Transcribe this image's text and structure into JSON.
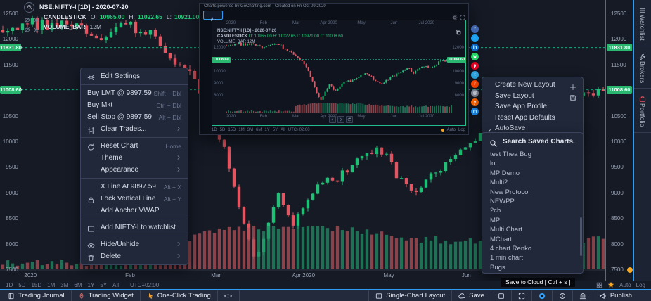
{
  "legend": {
    "symbol": "NSE:NIFTY-I [1D] - 2020-07-20",
    "study1": {
      "name": "CANDLESTICK",
      "o_label": "O:",
      "o": "10965.00",
      "h_label": "H:",
      "h": "11022.65",
      "l_label": "L:",
      "l": "10921.00",
      "c_label": "C:",
      "c": "11008.60"
    },
    "study2": {
      "name": "VOLUME_BAR",
      "value": "12M"
    }
  },
  "price_axis": {
    "tags": [
      {
        "label": "11831.80",
        "price": 11831.8
      },
      {
        "label": "11008.60",
        "price": 11008.6
      }
    ]
  },
  "chart_data": {
    "type": "candlestick",
    "symbol": "NSE:NIFTY-I",
    "interval": "1D",
    "last_date": "2020-07-20",
    "ohlc": {
      "open": 10965.0,
      "high": 11022.65,
      "low": 10921.0,
      "close": 11008.6
    },
    "volume": "12M",
    "y_range": [
      7500,
      12500
    ],
    "y_ticks": [
      12500,
      12000,
      11500,
      10500,
      10000,
      9500,
      9000,
      8500,
      8000,
      7500
    ],
    "x_ticks": [
      {
        "label": "2020",
        "f": 0.046
      },
      {
        "label": "Feb",
        "f": 0.212
      },
      {
        "label": "Mar",
        "f": 0.355
      },
      {
        "label": "Apr 2020",
        "f": 0.501
      },
      {
        "label": "May",
        "f": 0.643
      },
      {
        "label": "Jun",
        "f": 0.772
      }
    ],
    "levels": [
      11831.8,
      11008.6
    ],
    "anchors": [
      [
        0,
        12150
      ],
      [
        0.05,
        12300
      ],
      [
        0.12,
        12250
      ],
      [
        0.16,
        11950
      ],
      [
        0.2,
        12250
      ],
      [
        0.24,
        12150
      ],
      [
        0.28,
        11650
      ],
      [
        0.31,
        11300
      ],
      [
        0.34,
        10800
      ],
      [
        0.37,
        9800
      ],
      [
        0.4,
        8400
      ],
      [
        0.42,
        7620
      ],
      [
        0.44,
        8350
      ],
      [
        0.46,
        8950
      ],
      [
        0.48,
        8350
      ],
      [
        0.52,
        9100
      ],
      [
        0.56,
        9300
      ],
      [
        0.6,
        9700
      ],
      [
        0.63,
        9850
      ],
      [
        0.66,
        9250
      ],
      [
        0.69,
        8950
      ],
      [
        0.72,
        9400
      ],
      [
        0.75,
        9700
      ],
      [
        0.78,
        10000
      ],
      [
        0.81,
        10250
      ],
      [
        0.83,
        9900
      ],
      [
        0.86,
        10350
      ],
      [
        0.89,
        10500
      ],
      [
        0.91,
        10250
      ],
      [
        0.94,
        10750
      ],
      [
        0.97,
        10900
      ],
      [
        1,
        11010
      ]
    ]
  },
  "context_menu": {
    "items": [
      {
        "icon": "gear",
        "label": "Edit Settings"
      },
      {
        "divider": true
      },
      {
        "label": "Buy LMT @ 9897.59",
        "shortcut": "Shift + Dbl",
        "flush": true
      },
      {
        "label": "Buy Mkt",
        "shortcut": "Ctrl + Dbl",
        "flush": true
      },
      {
        "label": "Sell Stop @ 9897.59",
        "shortcut": "Alt + Dbl",
        "flush": true
      },
      {
        "icon": "sliders",
        "label": "Clear Trades...",
        "submenu": true
      },
      {
        "divider": true
      },
      {
        "icon": "reset",
        "label": "Reset Chart",
        "shortcut": "Home"
      },
      {
        "label": "Theme",
        "submenu": true
      },
      {
        "label": "Appearance",
        "submenu": true
      },
      {
        "divider": true
      },
      {
        "label": "X Line At 9897.59",
        "shortcut": "Alt + X"
      },
      {
        "icon": "lock",
        "label": "Lock Vertical Line",
        "shortcut": "Alt + Y"
      },
      {
        "label": "Add Anchor VWAP"
      },
      {
        "divider": true
      },
      {
        "icon": "wadd",
        "label": "Add NIFTY-I to watchlist"
      },
      {
        "divider": true
      },
      {
        "icon": "eye",
        "label": "Hide/Unhide",
        "submenu": true
      },
      {
        "icon": "trash",
        "label": "Delete",
        "submenu": true
      }
    ]
  },
  "layout_menu": {
    "items": [
      {
        "label": "Create New Layout",
        "right_icon": "plus"
      },
      {
        "label": "Save Layout",
        "right_icon": "save"
      },
      {
        "label": "Save App Profile"
      },
      {
        "label": "Reset App Defaults"
      },
      {
        "label": "AutoSave",
        "checked": true
      }
    ]
  },
  "saved_charts": {
    "search_placeholder": "Search Saved Charts.",
    "items": [
      "test Thea Bug",
      "lol",
      "MP Demo",
      "Multi2",
      "New Protocol",
      "NEWPP",
      "2ch",
      "MP",
      "Multi Chart",
      "MChart",
      "4 chart Renko",
      "1 min chart",
      "Bugs"
    ]
  },
  "popup": {
    "header": "Charts powered by GoCharting.com - Created on Fri Oct 09 2020",
    "legend_symbol": "NSE:NIFTY-I [1D] - 2020-07-20",
    "legend_candle_name": "CANDLESTICK",
    "legend_candle_values": "O: 10965.00 H: 11022.65 L: 10921.00 C: 11008.60",
    "legend_volume": "VOLUME_BAR 12M",
    "x_ticks": [
      "2020",
      "Feb",
      "Mar",
      "Apr 2020",
      "May",
      "Jun",
      "Jul 2020"
    ],
    "y_ticks": [
      12000,
      11000,
      10000,
      9000,
      8000
    ],
    "price_tag": "11008.60",
    "toolbar": {
      "timezone": "UTC+02:00",
      "auto": "Auto",
      "log": "Log"
    }
  },
  "timeframe_bar": {
    "timeframes": [
      "1D",
      "5D",
      "15D",
      "1M",
      "3M",
      "6M",
      "1Y",
      "5Y",
      "All"
    ],
    "timezone": "UTC+02:00",
    "auto_label": "Auto",
    "log_label": "Log"
  },
  "status_bar": {
    "left": [
      {
        "name": "trading-journal",
        "icon": "journal",
        "label": "Trading Journal"
      },
      {
        "name": "trading-widget",
        "icon": "rocket",
        "icon_color": "#e06d6d",
        "label": "Trading Widget"
      },
      {
        "name": "one-click-trading",
        "icon": "cursor",
        "icon_color": "#f0a132",
        "label": "One-Click Trading"
      },
      {
        "name": "code-editor",
        "label": "<>"
      }
    ],
    "right": [
      {
        "name": "single-chart-layout",
        "icon": "layout",
        "label": "Single-Chart Layout"
      },
      {
        "name": "save",
        "icon": "cloud",
        "label": "Save"
      },
      {
        "name": "select-tool",
        "icon": "checkbox",
        "label": ""
      },
      {
        "name": "fullscreen",
        "icon": "expand",
        "label": ""
      },
      {
        "name": "screenshot",
        "icon": "camera",
        "label": ""
      },
      {
        "name": "crosshair",
        "icon": "target",
        "label": ""
      },
      {
        "name": "exchange",
        "icon": "bank",
        "label": ""
      },
      {
        "name": "publish",
        "icon": "megaphone",
        "label": "Publish"
      }
    ]
  },
  "sidebar": {
    "tabs": [
      {
        "name": "watchlist",
        "icon": "list",
        "label": "Watchlist"
      },
      {
        "name": "brokers",
        "icon": "wrench",
        "label": "Brokers"
      },
      {
        "name": "portfolio",
        "icon": "briefcase",
        "icon_color": "#e25561",
        "label": "Portfolio"
      }
    ]
  },
  "social": {
    "icons": [
      {
        "name": "facebook",
        "color": "#4166b0",
        "glyph": "f"
      },
      {
        "name": "twitter",
        "color": "#1da1f2",
        "glyph": "t"
      },
      {
        "name": "linkedin",
        "color": "#0a66c2",
        "glyph": "in"
      },
      {
        "name": "whatsapp",
        "color": "#25d366",
        "glyph": "w"
      },
      {
        "name": "pinterest",
        "color": "#e60023",
        "glyph": "p"
      },
      {
        "name": "telegram",
        "color": "#2ca5e0",
        "glyph": "t"
      },
      {
        "name": "reddit",
        "color": "#ff4500",
        "glyph": "r"
      },
      {
        "name": "email",
        "color": "#7d8598",
        "glyph": "@"
      },
      {
        "name": "hackernews",
        "color": "#ff6600",
        "glyph": "y"
      },
      {
        "name": "messenger",
        "color": "#1e88e5",
        "glyph": "m"
      }
    ]
  },
  "tooltip": {
    "text": "Save to Cloud [ Ctrl + s ]"
  }
}
